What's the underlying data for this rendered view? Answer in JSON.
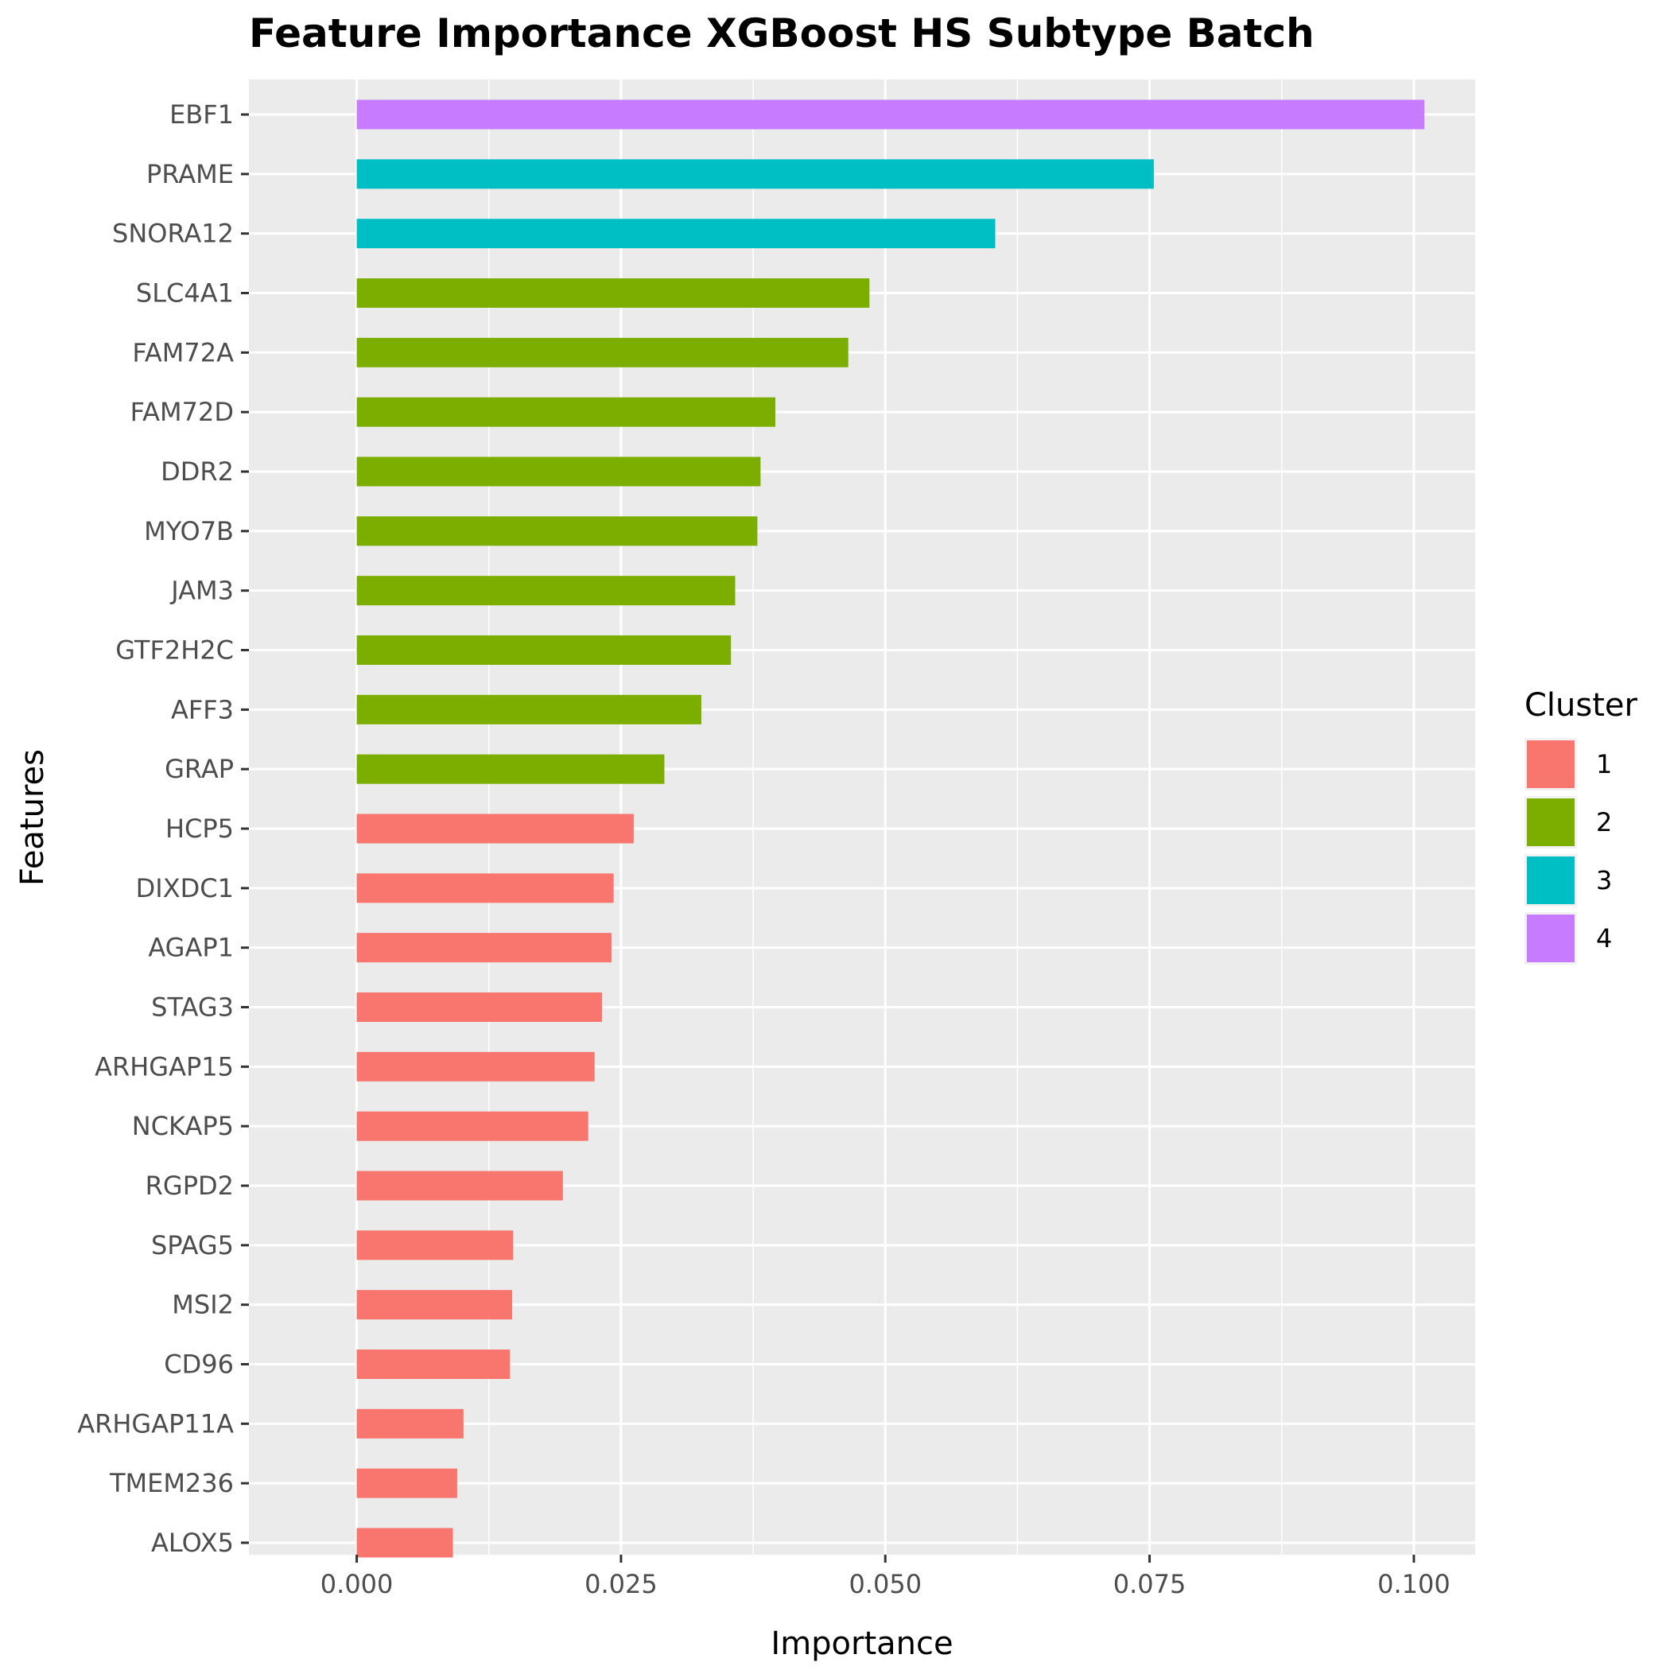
{
  "chart_data": {
    "type": "bar",
    "orientation": "horizontal",
    "title": "Feature Importance XGBoost HS Subtype Batch",
    "xlabel": "Importance",
    "ylabel": "Features",
    "xlim": [
      -0.0102,
      0.1058
    ],
    "x_ticks": [
      0.0,
      0.025,
      0.05,
      0.075,
      0.1
    ],
    "x_tick_labels": [
      "0.000",
      "0.025",
      "0.050",
      "0.075",
      "0.100"
    ],
    "grid": true,
    "legend_position": "right",
    "legend": {
      "title": "Cluster",
      "entries": [
        {
          "label": "1",
          "color": "#F8766D"
        },
        {
          "label": "2",
          "color": "#7CAE00"
        },
        {
          "label": "3",
          "color": "#00BFC4"
        },
        {
          "label": "4",
          "color": "#C77CFF"
        }
      ]
    },
    "categories": [
      "EBF1",
      "PRAME",
      "SNORA12",
      "SLC4A1",
      "FAM72A",
      "FAM72D",
      "DDR2",
      "MYO7B",
      "JAM3",
      "GTF2H2C",
      "AFF3",
      "GRAP",
      "HCP5",
      "DIXDC1",
      "AGAP1",
      "STAG3",
      "ARHGAP15",
      "NCKAP5",
      "RGPD2",
      "SPAG5",
      "MSI2",
      "CD96",
      "ARHGAP11A",
      "TMEM236",
      "ALOX5"
    ],
    "values": [
      0.101,
      0.0754,
      0.0604,
      0.0485,
      0.0465,
      0.0396,
      0.0382,
      0.0379,
      0.0358,
      0.0354,
      0.0326,
      0.0291,
      0.0262,
      0.0243,
      0.0241,
      0.0232,
      0.0225,
      0.0219,
      0.0195,
      0.0148,
      0.0147,
      0.0145,
      0.0101,
      0.0095,
      0.0091
    ],
    "clusters": [
      "4",
      "3",
      "3",
      "2",
      "2",
      "2",
      "2",
      "2",
      "2",
      "2",
      "2",
      "2",
      "1",
      "1",
      "1",
      "1",
      "1",
      "1",
      "1",
      "1",
      "1",
      "1",
      "1",
      "1",
      "1"
    ]
  },
  "colors": {
    "panel_background": "#EBEBEB",
    "gridline": "#FFFFFF",
    "tick_mark": "#333333"
  }
}
